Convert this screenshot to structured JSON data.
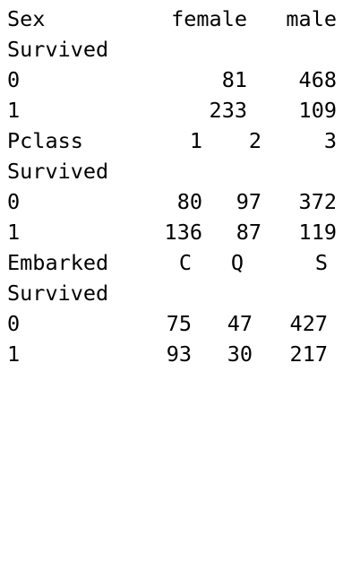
{
  "tables": [
    {
      "header": {
        "label": "Sex",
        "columns": [
          "female",
          "male"
        ]
      },
      "index_name": "Survived",
      "rows": [
        {
          "index": "0",
          "values": [
            "81",
            "468"
          ]
        },
        {
          "index": "1",
          "values": [
            "233",
            "109"
          ]
        }
      ]
    },
    {
      "header": {
        "label": "Pclass",
        "columns": [
          "1",
          "2",
          "3"
        ]
      },
      "index_name": "Survived",
      "rows": [
        {
          "index": "0",
          "values": [
            "80",
            "97",
            "372"
          ]
        },
        {
          "index": "1",
          "values": [
            "136",
            "87",
            "119"
          ]
        }
      ]
    },
    {
      "header": {
        "label": "Embarked",
        "columns": [
          "C",
          "Q",
          "S"
        ]
      },
      "index_name": "Survived",
      "rows": [
        {
          "index": "0",
          "values": [
            "75",
            "47",
            "427"
          ]
        },
        {
          "index": "1",
          "values": [
            "93",
            "30",
            "217"
          ]
        }
      ]
    }
  ]
}
